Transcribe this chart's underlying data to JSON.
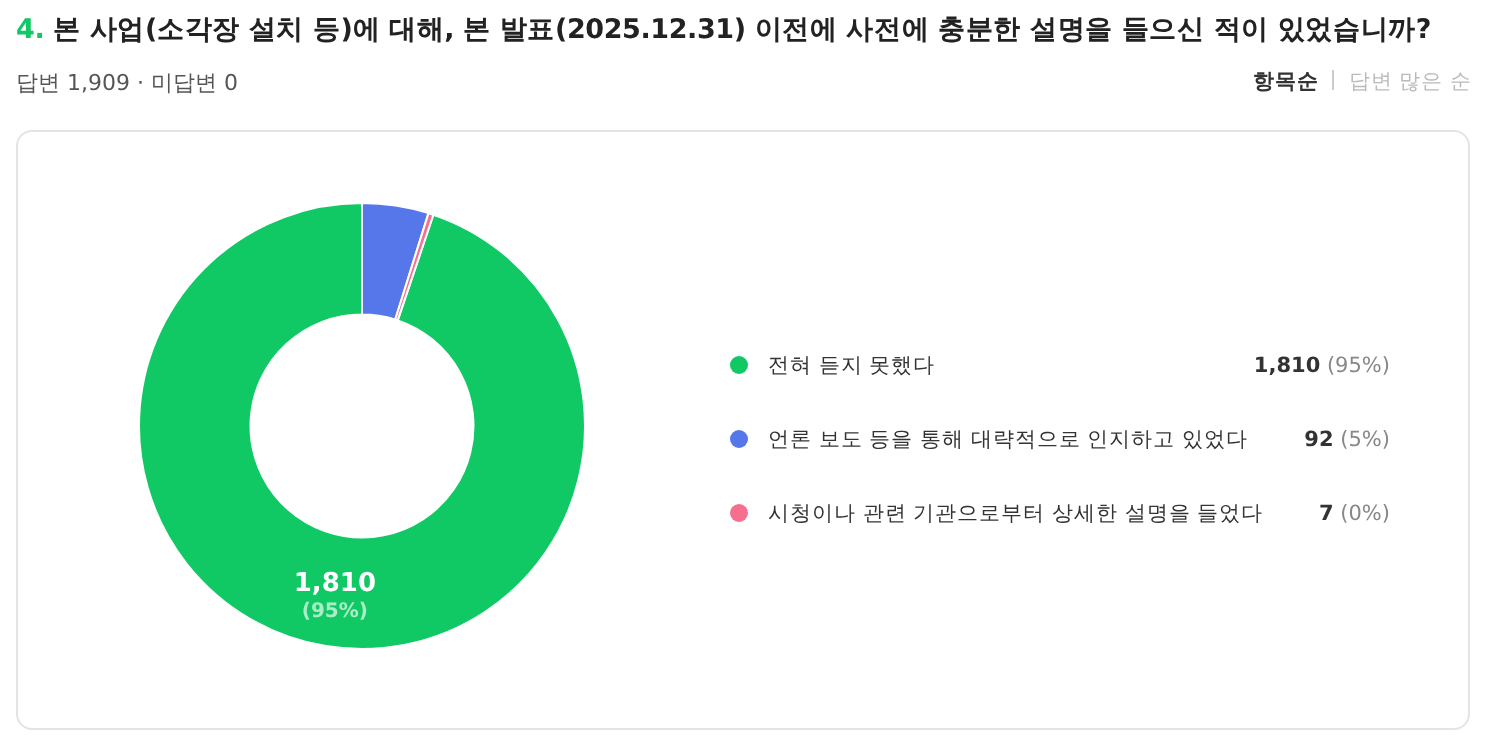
{
  "chart_data": {
    "type": "donut",
    "title": "4. 본 사업(소각장 설치 등)에 대해, 본 발표(2025.12.31) 이전에 사전에 충분한 설명을 들으신 적이 있었습니까?",
    "subtitle": "답변 1,909 · 미답변 0",
    "annotations": [
      "항목순",
      "답변 많은 순"
    ],
    "categories": [
      "전혀 듣지 못했다",
      "언론 보도 등을 통해 대략적으로 인지하고 있었다",
      "시청이나 관련 기관으로부터 상세한 설명을 들었다"
    ],
    "values": [
      1810,
      92,
      7
    ],
    "colors": [
      "#10c964",
      "#5677ea",
      "#f76f8e"
    ],
    "value_labels": [
      "1,810 (95%)",
      "92 (5%)",
      "7 (0%)"
    ],
    "legend": "right"
  }
}
